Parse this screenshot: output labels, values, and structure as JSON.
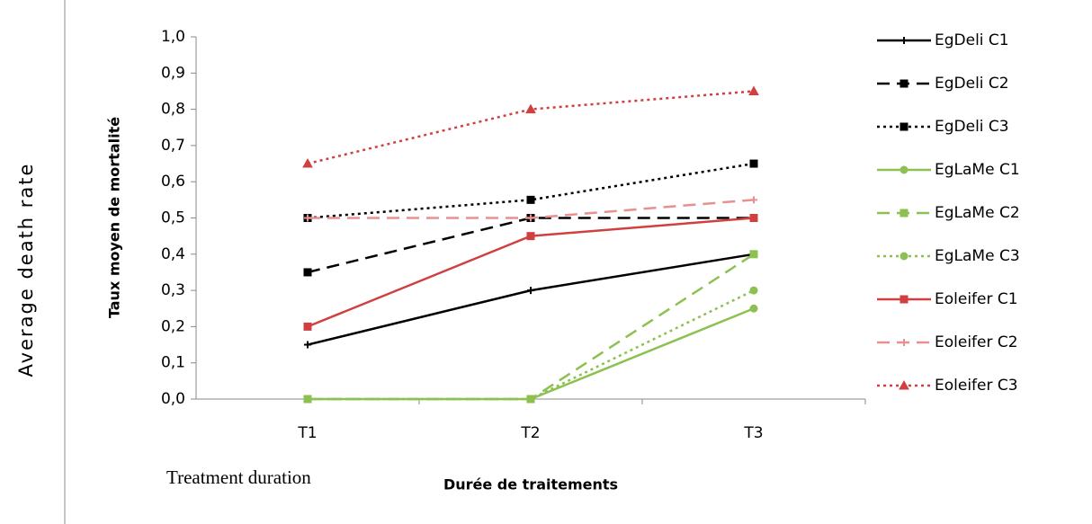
{
  "chart_data": {
    "type": "line",
    "y_label": "Taux moyen de mortalité",
    "x_label": "Durée de traitements",
    "outer_y_label": "Average death rate",
    "outer_x_label": "Treatment duration",
    "categories": [
      "T1",
      "T2",
      "T3"
    ],
    "ylim": [
      0,
      1
    ],
    "yticks": [
      {
        "value": 0,
        "label": "0,0"
      },
      {
        "value": 0.1,
        "label": "0,1"
      },
      {
        "value": 0.2,
        "label": "0,2"
      },
      {
        "value": 0.3,
        "label": "0,3"
      },
      {
        "value": 0.4,
        "label": "0,4"
      },
      {
        "value": 0.5,
        "label": "0,5"
      },
      {
        "value": 0.6,
        "label": "0,6"
      },
      {
        "value": 0.7,
        "label": "0,7"
      },
      {
        "value": 0.8,
        "label": "0,8"
      },
      {
        "value": 0.9,
        "label": "0,9"
      },
      {
        "value": 1,
        "label": "1,0"
      }
    ],
    "legend": "right",
    "series": [
      {
        "name": "EgDeli C1",
        "color": "#000000",
        "dash": "solid",
        "marker": "plus",
        "values": [
          0.15,
          0.3,
          0.4
        ]
      },
      {
        "name": "EgDeli C2",
        "color": "#000000",
        "dash": "dashed",
        "marker": "square",
        "values": [
          0.35,
          0.5,
          0.5
        ]
      },
      {
        "name": "EgDeli C3",
        "color": "#000000",
        "dash": "dotted",
        "marker": "square",
        "values": [
          0.5,
          0.55,
          0.65
        ]
      },
      {
        "name": "EgLaMe C1",
        "color": "#8cc152",
        "dash": "solid",
        "marker": "circle",
        "values": [
          0,
          0,
          0.25
        ]
      },
      {
        "name": "EgLaMe C2",
        "color": "#8cc152",
        "dash": "dashed",
        "marker": "square",
        "values": [
          0,
          0,
          0.4
        ]
      },
      {
        "name": "EgLaMe C3",
        "color": "#8cc152",
        "dash": "dotted",
        "marker": "circle",
        "values": [
          0,
          0,
          0.3
        ]
      },
      {
        "name": "Eoleifer C1",
        "color": "#d04040",
        "dash": "solid",
        "marker": "square",
        "values": [
          0.2,
          0.45,
          0.5
        ]
      },
      {
        "name": "Eoleifer C2",
        "color": "#e89090",
        "dash": "dashed",
        "marker": "plus",
        "values": [
          0.5,
          0.5,
          0.55
        ]
      },
      {
        "name": "Eoleifer C3",
        "color": "#d04040",
        "dash": "dotted",
        "marker": "triangle",
        "values": [
          0.65,
          0.8,
          0.85
        ]
      }
    ]
  }
}
